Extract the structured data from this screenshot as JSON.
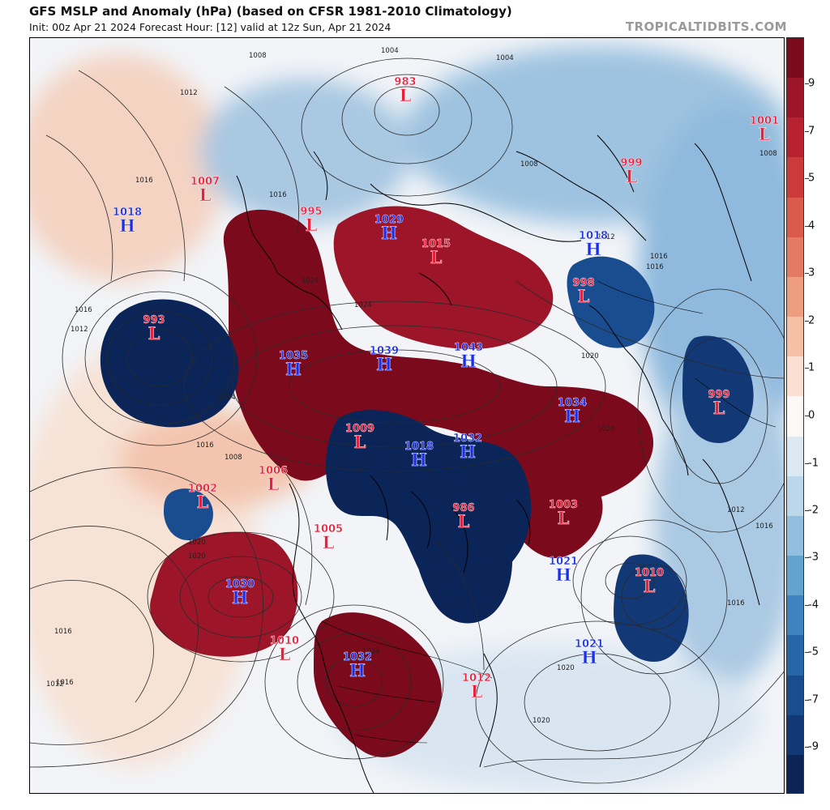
{
  "header": {
    "title": "GFS MSLP and Anomaly (hPa) (based on CFSR 1981-2010 Climatology)",
    "subtitle": "Init: 00z Apr 21 2024   Forecast Hour: [12]   valid at 12z Sun, Apr 21 2024",
    "brand": "TROPICALTIDBITS.COM"
  },
  "colors": {
    "high_label": "#1a2ee6",
    "low_label": "#e8203a",
    "ocean_base": "#f2f4f8",
    "coastline": "#000000",
    "isobar": "#2a2a2a"
  },
  "colorbar": {
    "labels": [
      "9",
      "7",
      "5",
      "4",
      "3",
      "2",
      "1",
      "0",
      "-1",
      "-2",
      "-3",
      "-4",
      "-5",
      "-7",
      "-9"
    ],
    "segments": [
      {
        "from": 9,
        "color": "#7a0a1c"
      },
      {
        "from": 8,
        "color": "#9c1528"
      },
      {
        "from": 7,
        "color": "#b82230"
      },
      {
        "from": 6,
        "color": "#cc3a3c"
      },
      {
        "from": 5,
        "color": "#da5a4c"
      },
      {
        "from": 4,
        "color": "#e57a62"
      },
      {
        "from": 3,
        "color": "#ef9d80"
      },
      {
        "from": 2,
        "color": "#f6c0a6"
      },
      {
        "from": 1,
        "color": "#fbdfd0"
      },
      {
        "from": 0,
        "color": "#fbf8f5"
      },
      {
        "from": -1,
        "color": "#dce8f2"
      },
      {
        "from": -2,
        "color": "#bcd6ea"
      },
      {
        "from": -3,
        "color": "#92bfdf"
      },
      {
        "from": -4,
        "color": "#64a2d0"
      },
      {
        "from": -5,
        "color": "#3f83c0"
      },
      {
        "from": -6,
        "color": "#2866aa"
      },
      {
        "from": -7,
        "color": "#1a4d90"
      },
      {
        "from": -8,
        "color": "#123875"
      },
      {
        "from": -9,
        "color": "#0b2558"
      }
    ]
  },
  "anomaly_regions": [
    {
      "name": "n-america-ridge",
      "value": 9
    },
    {
      "name": "siberia-ridge",
      "value": 8
    },
    {
      "name": "ne-pacific-ridge",
      "value": 8
    },
    {
      "name": "e-canada-ridge",
      "value": 9
    },
    {
      "name": "n-pacific-low",
      "value": -9
    },
    {
      "name": "arctic-trough",
      "value": -9
    },
    {
      "name": "hudson-trough",
      "value": -9
    },
    {
      "name": "europe-low",
      "value": -7
    },
    {
      "name": "atlantic-low",
      "value": -8
    }
  ],
  "systems": [
    {
      "type": "L",
      "value": "983"
    },
    {
      "type": "L",
      "value": "1007"
    },
    {
      "type": "H",
      "value": "1018"
    },
    {
      "type": "L",
      "value": "995"
    },
    {
      "type": "H",
      "value": "1029"
    },
    {
      "type": "L",
      "value": "1015"
    },
    {
      "type": "H",
      "value": "1018"
    },
    {
      "type": "L",
      "value": "998"
    },
    {
      "type": "L",
      "value": "999"
    },
    {
      "type": "L",
      "value": "1001"
    },
    {
      "type": "L",
      "value": "993"
    },
    {
      "type": "H",
      "value": "1035"
    },
    {
      "type": "H",
      "value": "1039"
    },
    {
      "type": "H",
      "value": "1043"
    },
    {
      "type": "H",
      "value": "1034"
    },
    {
      "type": "L",
      "value": "999"
    },
    {
      "type": "L",
      "value": "1009"
    },
    {
      "type": "H",
      "value": "1018"
    },
    {
      "type": "H",
      "value": "1032"
    },
    {
      "type": "L",
      "value": "1006"
    },
    {
      "type": "L",
      "value": "1002"
    },
    {
      "type": "L",
      "value": "986"
    },
    {
      "type": "L",
      "value": "1005"
    },
    {
      "type": "L",
      "value": "1003"
    },
    {
      "type": "H",
      "value": "1021"
    },
    {
      "type": "L",
      "value": "1010"
    },
    {
      "type": "H",
      "value": "1030"
    },
    {
      "type": "L",
      "value": "1010"
    },
    {
      "type": "H",
      "value": "1032"
    },
    {
      "type": "L",
      "value": "1012"
    },
    {
      "type": "H",
      "value": "1021"
    }
  ],
  "isobar_labels": [
    "1008",
    "1012",
    "1016",
    "1016",
    "1004",
    "1004",
    "1008",
    "1012",
    "1016",
    "1016",
    "1020",
    "1024",
    "1024",
    "1020",
    "1016",
    "1012",
    "1008",
    "1004",
    "1016",
    "1020",
    "1020",
    "1016",
    "1016",
    "1012",
    "1008",
    "1016",
    "1012",
    "1024",
    "1020",
    "1020",
    "1016"
  ]
}
